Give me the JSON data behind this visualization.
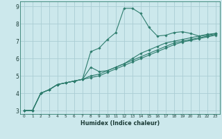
{
  "xlabel": "Humidex (Indice chaleur)",
  "ylabel": "",
  "bg_color": "#cce8ec",
  "grid_color": "#aacdd4",
  "line_color": "#2e7d6e",
  "xlim": [
    -0.5,
    23.5
  ],
  "ylim": [
    2.8,
    9.3
  ],
  "xticks": [
    0,
    1,
    2,
    3,
    4,
    5,
    6,
    7,
    8,
    9,
    10,
    11,
    12,
    13,
    14,
    15,
    16,
    17,
    18,
    19,
    20,
    21,
    22,
    23
  ],
  "yticks": [
    3,
    4,
    5,
    6,
    7,
    8,
    9
  ],
  "lines": [
    [
      3.0,
      3.0,
      4.0,
      4.2,
      4.5,
      4.6,
      4.7,
      4.8,
      6.4,
      6.6,
      7.1,
      7.5,
      8.9,
      8.9,
      8.6,
      7.8,
      7.3,
      7.35,
      7.5,
      7.55,
      7.45,
      7.3,
      7.4,
      7.45
    ],
    [
      3.0,
      3.0,
      4.0,
      4.2,
      4.5,
      4.6,
      4.7,
      4.8,
      5.5,
      5.25,
      5.3,
      5.5,
      5.7,
      6.0,
      6.3,
      6.5,
      6.7,
      6.9,
      7.0,
      7.1,
      7.2,
      7.3,
      7.35,
      7.45
    ],
    [
      3.0,
      3.0,
      4.0,
      4.2,
      4.5,
      4.6,
      4.7,
      4.8,
      5.0,
      5.1,
      5.3,
      5.5,
      5.7,
      5.9,
      6.1,
      6.3,
      6.5,
      6.7,
      6.9,
      7.0,
      7.1,
      7.2,
      7.3,
      7.4
    ],
    [
      3.0,
      3.0,
      4.0,
      4.2,
      4.5,
      4.6,
      4.7,
      4.8,
      4.9,
      5.0,
      5.2,
      5.4,
      5.6,
      5.8,
      6.0,
      6.2,
      6.4,
      6.6,
      6.8,
      6.95,
      7.05,
      7.15,
      7.25,
      7.35
    ]
  ]
}
